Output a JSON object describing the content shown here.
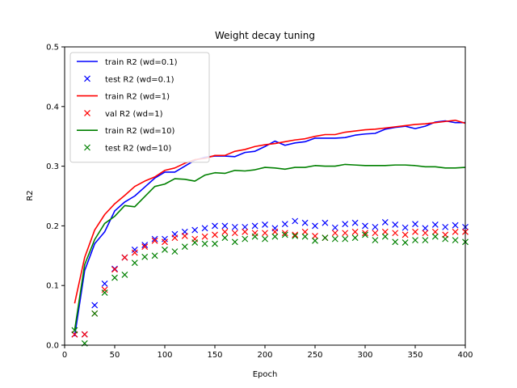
{
  "chart_data": {
    "type": "line",
    "title": "Weight decay tuning",
    "xlabel": "Epoch",
    "ylabel": "R2",
    "xlim": [
      0,
      400
    ],
    "ylim": [
      0.0,
      0.5
    ],
    "xticks": [
      0,
      50,
      100,
      150,
      200,
      250,
      300,
      350,
      400
    ],
    "yticks": [
      0.0,
      0.1,
      0.2,
      0.3,
      0.4,
      0.5
    ],
    "grid": false,
    "legend_position": "top-left",
    "x": [
      10,
      20,
      30,
      40,
      50,
      60,
      70,
      80,
      90,
      100,
      110,
      120,
      130,
      140,
      150,
      160,
      170,
      180,
      190,
      200,
      210,
      220,
      230,
      240,
      250,
      260,
      270,
      280,
      290,
      300,
      310,
      320,
      330,
      340,
      350,
      360,
      370,
      380,
      390,
      400
    ],
    "series": [
      {
        "name": "train R2 (wd=0.1)",
        "style": "line",
        "color": "#0000ff",
        "values": [
          0.015,
          0.125,
          0.17,
          0.19,
          0.225,
          0.24,
          0.25,
          0.265,
          0.28,
          0.29,
          0.29,
          0.3,
          0.31,
          0.315,
          0.317,
          0.317,
          0.316,
          0.323,
          0.325,
          0.333,
          0.342,
          0.335,
          0.339,
          0.341,
          0.347,
          0.347,
          0.347,
          0.348,
          0.352,
          0.354,
          0.355,
          0.362,
          0.365,
          0.367,
          0.363,
          0.367,
          0.374,
          0.376,
          0.373,
          0.373
        ]
      },
      {
        "name": "test R2 (wd=0.1)",
        "style": "marker",
        "color": "#0000ff",
        "values": [
          0.018,
          0.018,
          0.067,
          0.103,
          0.128,
          0.147,
          0.16,
          0.168,
          0.178,
          0.178,
          0.186,
          0.19,
          0.193,
          0.196,
          0.2,
          0.2,
          0.198,
          0.198,
          0.2,
          0.202,
          0.196,
          0.203,
          0.208,
          0.205,
          0.2,
          0.205,
          0.197,
          0.203,
          0.205,
          0.2,
          0.198,
          0.206,
          0.202,
          0.197,
          0.203,
          0.196,
          0.202,
          0.198,
          0.201,
          0.198
        ]
      },
      {
        "name": "train R2 (wd=1)",
        "style": "line",
        "color": "#ff0000",
        "values": [
          0.07,
          0.147,
          0.193,
          0.219,
          0.237,
          0.251,
          0.266,
          0.275,
          0.282,
          0.293,
          0.297,
          0.305,
          0.311,
          0.313,
          0.318,
          0.318,
          0.325,
          0.328,
          0.333,
          0.336,
          0.338,
          0.341,
          0.344,
          0.346,
          0.35,
          0.353,
          0.353,
          0.357,
          0.359,
          0.361,
          0.362,
          0.364,
          0.366,
          0.368,
          0.37,
          0.371,
          0.373,
          0.375,
          0.377,
          0.372
        ]
      },
      {
        "name": "val R2 (wd=1)",
        "style": "marker",
        "color": "#ff0000",
        "values": [
          0.018,
          0.018,
          0.053,
          0.093,
          0.127,
          0.147,
          0.155,
          0.165,
          0.175,
          0.173,
          0.18,
          0.183,
          0.178,
          0.182,
          0.185,
          0.19,
          0.188,
          0.19,
          0.188,
          0.188,
          0.19,
          0.188,
          0.185,
          0.19,
          0.183,
          0.18,
          0.188,
          0.188,
          0.19,
          0.188,
          0.188,
          0.19,
          0.188,
          0.185,
          0.19,
          0.188,
          0.19,
          0.185,
          0.19,
          0.19
        ]
      },
      {
        "name": "train R2 (wd=10)",
        "style": "line",
        "color": "#008000",
        "values": [
          0.025,
          0.135,
          0.177,
          0.204,
          0.216,
          0.234,
          0.232,
          0.249,
          0.266,
          0.27,
          0.279,
          0.278,
          0.275,
          0.285,
          0.289,
          0.288,
          0.293,
          0.292,
          0.294,
          0.298,
          0.297,
          0.295,
          0.298,
          0.298,
          0.301,
          0.3,
          0.3,
          0.303,
          0.302,
          0.301,
          0.301,
          0.301,
          0.302,
          0.302,
          0.301,
          0.299,
          0.299,
          0.297,
          0.297,
          0.298
        ]
      },
      {
        "name": "test R2 (wd=10)",
        "style": "marker",
        "color": "#008000",
        "values": [
          0.025,
          0.003,
          0.053,
          0.088,
          0.113,
          0.118,
          0.138,
          0.148,
          0.15,
          0.16,
          0.157,
          0.165,
          0.172,
          0.17,
          0.17,
          0.18,
          0.173,
          0.178,
          0.182,
          0.178,
          0.182,
          0.185,
          0.183,
          0.182,
          0.175,
          0.18,
          0.178,
          0.178,
          0.18,
          0.185,
          0.176,
          0.182,
          0.173,
          0.172,
          0.176,
          0.176,
          0.182,
          0.178,
          0.176,
          0.173
        ]
      }
    ]
  }
}
